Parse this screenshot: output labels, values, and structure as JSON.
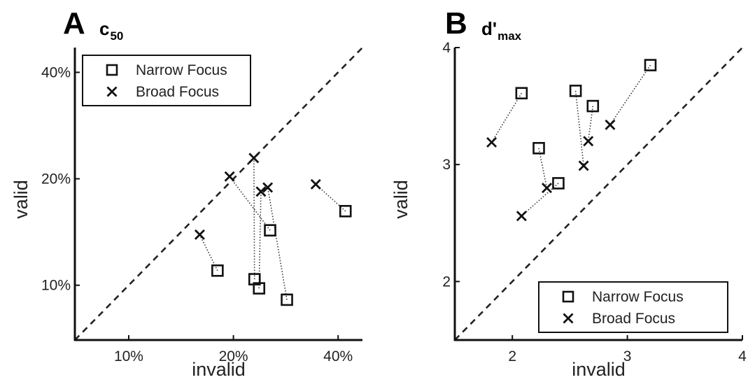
{
  "chart_data": [
    {
      "type": "scatter",
      "panel": "A",
      "title": "c",
      "title_sub": "50",
      "xlabel": "invalid",
      "ylabel": "valid",
      "scale": "log",
      "xticks": [
        0.1,
        0.2,
        0.4
      ],
      "xtick_labels": [
        "10%",
        "20%",
        "40%"
      ],
      "yticks": [
        0.1,
        0.2,
        0.4
      ],
      "ytick_labels": [
        "10%",
        "20%",
        "40%"
      ],
      "xlim": [
        0.07,
        0.47
      ],
      "ylim": [
        0.07,
        0.47
      ],
      "diagonal": true,
      "legend": {
        "placement": "top-left"
      },
      "series": [
        {
          "name": "Narrow Focus",
          "marker": "square",
          "points": [
            [
              0.18,
              0.11
            ],
            [
              0.23,
              0.104
            ],
            [
              0.237,
              0.098
            ],
            [
              0.255,
              0.143
            ],
            [
              0.285,
              0.091
            ],
            [
              0.42,
              0.162
            ]
          ]
        },
        {
          "name": "Broad Focus",
          "marker": "x",
          "points": [
            [
              0.16,
              0.139
            ],
            [
              0.195,
              0.203
            ],
            [
              0.229,
              0.229
            ],
            [
              0.24,
              0.184
            ],
            [
              0.251,
              0.189
            ],
            [
              0.345,
              0.193
            ]
          ]
        }
      ],
      "links": [
        [
          0,
          0
        ],
        [
          1,
          2
        ],
        [
          2,
          3
        ],
        [
          3,
          1
        ],
        [
          4,
          4
        ],
        [
          5,
          5
        ]
      ]
    },
    {
      "type": "scatter",
      "panel": "B",
      "title": "d'",
      "title_sub": "max",
      "xlabel": "invalid",
      "ylabel": "valid",
      "scale": "linear",
      "xticks": [
        2,
        3,
        4
      ],
      "xtick_labels": [
        "2",
        "3",
        "4"
      ],
      "yticks": [
        2,
        3,
        4
      ],
      "ytick_labels": [
        "2",
        "3",
        "4"
      ],
      "xlim": [
        1.5,
        4
      ],
      "ylim": [
        1.5,
        4
      ],
      "diagonal": true,
      "legend": {
        "placement": "bottom-right"
      },
      "series": [
        {
          "name": "Narrow Focus",
          "marker": "square",
          "points": [
            [
              2.08,
              3.61
            ],
            [
              2.23,
              3.14
            ],
            [
              2.4,
              2.84
            ],
            [
              2.55,
              3.63
            ],
            [
              2.7,
              3.5
            ],
            [
              3.2,
              3.85
            ]
          ]
        },
        {
          "name": "Broad Focus",
          "marker": "x",
          "points": [
            [
              1.82,
              3.19
            ],
            [
              2.08,
              2.56
            ],
            [
              2.3,
              2.8
            ],
            [
              2.62,
              2.99
            ],
            [
              2.66,
              3.2
            ],
            [
              2.85,
              3.34
            ]
          ]
        }
      ],
      "links": [
        [
          0,
          0
        ],
        [
          1,
          2
        ],
        [
          2,
          1
        ],
        [
          3,
          3
        ],
        [
          4,
          4
        ],
        [
          5,
          5
        ]
      ]
    }
  ]
}
